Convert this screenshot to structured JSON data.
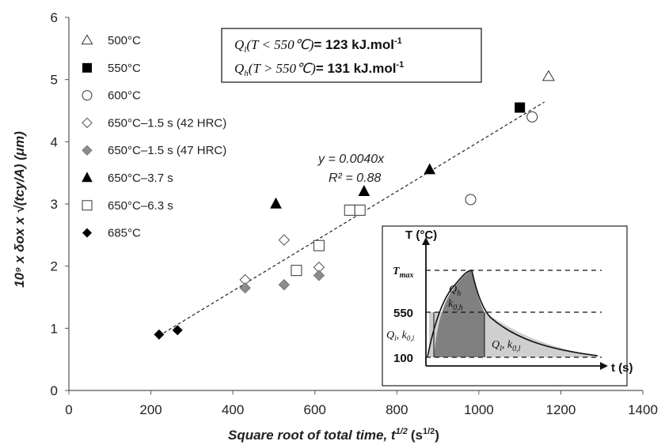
{
  "chart_data": {
    "type": "scatter",
    "xlabel_main": "Square root of total time, t",
    "xlabel_sup": "1/2",
    "xlabel_unit": "(s",
    "xlabel_unit_sup": "1/2",
    "xlabel_unit_close": ")",
    "ylabel": "10⁹ x δox x √(tcy/A) (μm)",
    "xlim": [
      0,
      1400
    ],
    "ylim": [
      0,
      6
    ],
    "x_ticks": [
      0,
      200,
      400,
      600,
      800,
      1000,
      1200,
      1400
    ],
    "y_ticks": [
      0,
      1,
      2,
      3,
      4,
      5,
      6
    ],
    "grid": false,
    "legend_placement": "top-left",
    "series": [
      {
        "name": "500°C",
        "marker": "triangle-open",
        "points": [
          [
            1170,
            5.05
          ]
        ]
      },
      {
        "name": "550°C",
        "marker": "square-filled",
        "points": [
          [
            1100,
            4.55
          ]
        ]
      },
      {
        "name": "600°C",
        "marker": "circle-open",
        "points": [
          [
            1130,
            4.4
          ],
          [
            980,
            3.07
          ]
        ]
      },
      {
        "name": "650°C–1.5 s (42 HRC)",
        "marker": "diamond-open",
        "points": [
          [
            430,
            1.78
          ],
          [
            525,
            2.42
          ],
          [
            610,
            1.98
          ]
        ]
      },
      {
        "name": "650°C–1.5 s (47 HRC)",
        "marker": "diamond-gray",
        "points": [
          [
            430,
            1.65
          ],
          [
            525,
            1.7
          ],
          [
            610,
            1.85
          ]
        ]
      },
      {
        "name": "650°C–3.7 s",
        "marker": "triangle-filled",
        "points": [
          [
            505,
            3.0
          ],
          [
            720,
            3.2
          ],
          [
            880,
            3.55
          ]
        ]
      },
      {
        "name": "650°C–6.3 s",
        "marker": "square-open",
        "points": [
          [
            555,
            1.93
          ],
          [
            610,
            2.33
          ],
          [
            685,
            2.9
          ],
          [
            710,
            2.9
          ]
        ]
      },
      {
        "name": "685°C",
        "marker": "diamond-filled",
        "points": [
          [
            220,
            0.9
          ],
          [
            265,
            0.97
          ]
        ]
      }
    ],
    "trendline": {
      "slope": 0.004,
      "x_range": [
        220,
        1160
      ],
      "equation": "y = 0.0040x",
      "r2": "R² = 0.88"
    },
    "annotation_box": {
      "line1": {
        "q": "Q",
        "sub": "l",
        "cond": "(T < 550℃)",
        "value": "= 123 kJ.mol",
        "sup": "-1"
      },
      "line2": {
        "q": "Q",
        "sub": "h",
        "cond": "(T > 550℃)",
        "value": "= 131 kJ.mol",
        "sup": "-1"
      }
    },
    "inset": {
      "y_axis_label": "T (°C)",
      "x_axis_label": "t (s)",
      "level_tmax": "T",
      "level_tmax_sub": "max",
      "level_550": "550",
      "level_100": "100",
      "qh": "Q",
      "qh_sub": "h",
      "k0h": "k",
      "k0h_sub": "0,h",
      "ql_left": "Q",
      "ql_left_sub": "l",
      "k0l_left": ", k",
      "k0l_left_sub": "0,l",
      "ql_right": "Q",
      "ql_right_sub": "l",
      "k0l_right": ", k",
      "k0l_right_sub": "0,l"
    }
  }
}
